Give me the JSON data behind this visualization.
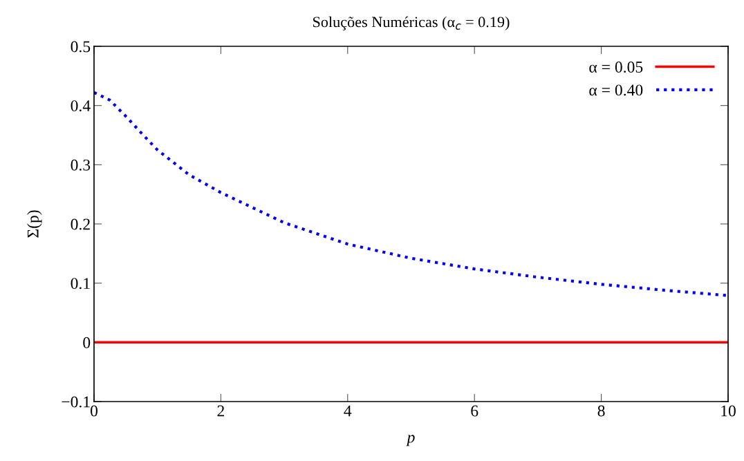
{
  "chart_data": {
    "type": "line",
    "title": "Soluções Numéricas (α$_{c}$ = 0.19)",
    "xlabel": "p",
    "ylabel": "Σ(p)",
    "xlim": [
      0,
      10
    ],
    "ylim": [
      -0.1,
      0.5
    ],
    "xticks": [
      0,
      2,
      4,
      6,
      8,
      10
    ],
    "yticks": [
      {
        "value": -0.1,
        "label": "−0.1"
      },
      0,
      0.1,
      0.2,
      0.3,
      0.4,
      0.5
    ],
    "legend": "top right",
    "grid": false,
    "series": [
      {
        "name": "α = 0.05",
        "color": "#ff0000",
        "line_style": "solid",
        "x": [
          0,
          10
        ],
        "values": [
          0,
          0
        ]
      },
      {
        "name": "α = 0.40",
        "color": "#0000ff",
        "line_style": "dotted",
        "x": [
          0,
          0.25,
          0.5,
          0.75,
          1,
          1.5,
          2,
          3,
          4,
          5,
          6,
          7,
          8,
          9,
          10
        ],
        "values": [
          0.422,
          0.409,
          0.382,
          0.353,
          0.325,
          0.283,
          0.253,
          0.202,
          0.166,
          0.142,
          0.124,
          0.11,
          0.098,
          0.088,
          0.079
        ]
      }
    ]
  }
}
